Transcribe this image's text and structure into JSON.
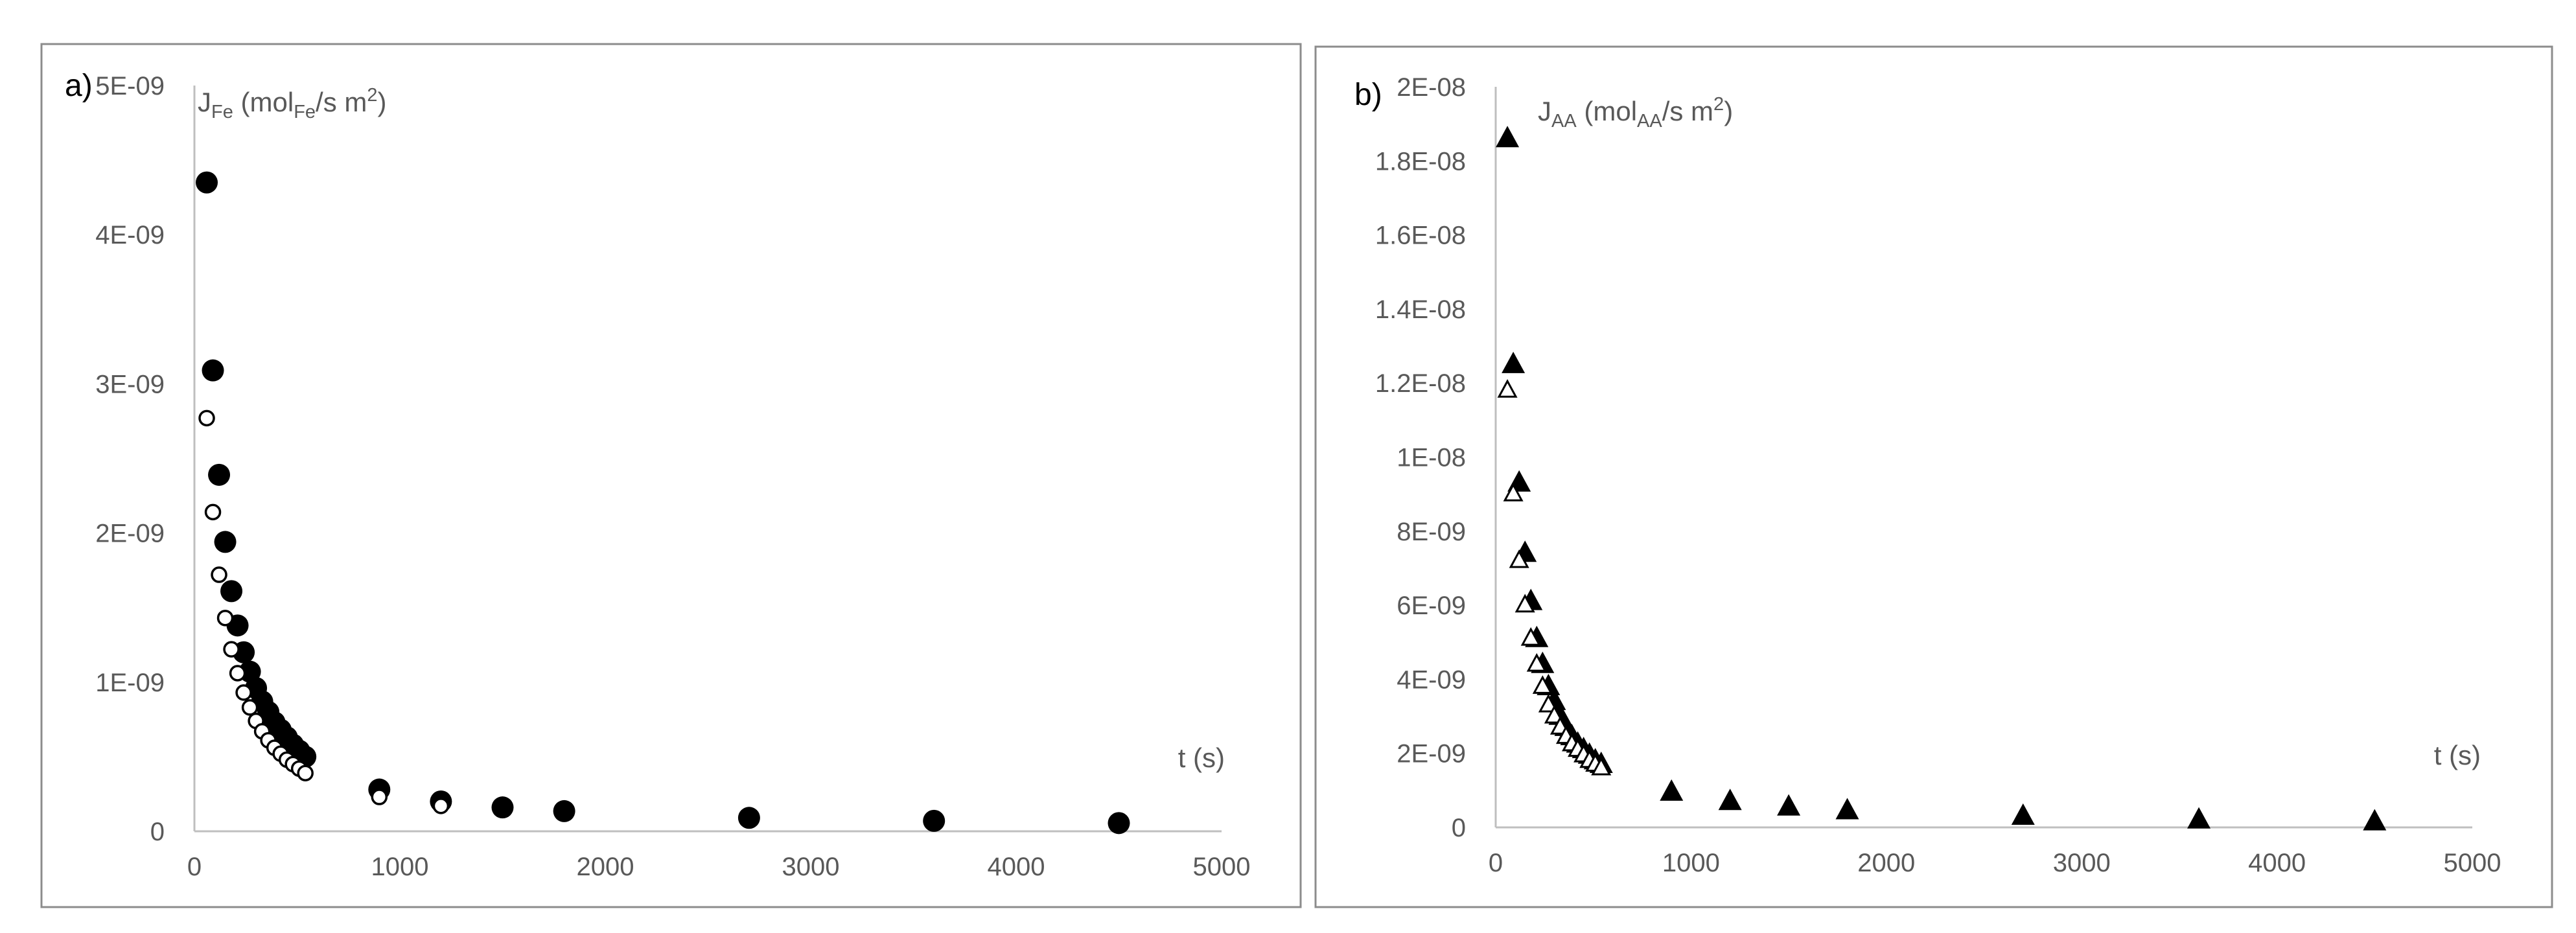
{
  "chart_data": [
    {
      "type": "scatter",
      "panel_label": "a)",
      "ylabel_main": "J",
      "ylabel_sub": "Fe",
      "ylabel_mid": " (mol",
      "ylabel_sub2": "Fe",
      "ylabel_unit": "/s m",
      "ylabel_sup": "2",
      "ylabel_close": ")",
      "xlabel": "t (s)",
      "xlim": [
        0,
        5000
      ],
      "ylim": [
        0,
        5e-09
      ],
      "xticks": [
        "0",
        "1000",
        "2000",
        "3000",
        "4000",
        "5000"
      ],
      "yticks": [
        "0",
        "1E-09",
        "2E-09",
        "3E-09",
        "4E-09",
        "5E-09"
      ],
      "grid": false,
      "series": [
        {
          "marker": "circle-filled",
          "x": [
            60,
            90,
            120,
            150,
            180,
            210,
            240,
            270,
            300,
            330,
            360,
            390,
            420,
            450,
            480,
            510,
            540,
            900,
            1200,
            1500,
            1800,
            2700,
            3600,
            4500
          ],
          "y": [
            4.35e-09,
            3.09e-09,
            2.39e-09,
            1.94e-09,
            1.61e-09,
            1.38e-09,
            1.2e-09,
            1.07e-09,
            9.6e-10,
            8.7e-10,
            8e-10,
            7.3e-10,
            6.8e-10,
            6.3e-10,
            5.8e-10,
            5.4e-10,
            5e-10,
            2.8e-10,
            2e-10,
            1.6e-10,
            1.35e-10,
            9e-11,
            7e-11,
            5.5e-11
          ]
        },
        {
          "marker": "circle-open",
          "x": [
            60,
            90,
            120,
            150,
            180,
            210,
            240,
            270,
            300,
            330,
            360,
            390,
            420,
            450,
            480,
            510,
            540,
            900,
            1200
          ],
          "y": [
            2.77e-09,
            2.14e-09,
            1.72e-09,
            1.43e-09,
            1.22e-09,
            1.06e-09,
            9.3e-10,
            8.3e-10,
            7.4e-10,
            6.7e-10,
            6.1e-10,
            5.6e-10,
            5.2e-10,
            4.8e-10,
            4.5e-10,
            4.2e-10,
            3.9e-10,
            2.3e-10,
            1.7e-10
          ]
        }
      ]
    },
    {
      "type": "scatter",
      "panel_label": "b)",
      "ylabel_main": "J",
      "ylabel_sub": "AA",
      "ylabel_mid": " (mol",
      "ylabel_sub2": "AA",
      "ylabel_unit": "/s m",
      "ylabel_sup": "2",
      "ylabel_close": ")",
      "xlabel": "t (s)",
      "xlim": [
        0,
        5000
      ],
      "ylim": [
        0,
        2e-08
      ],
      "xticks": [
        "0",
        "1000",
        "2000",
        "3000",
        "4000",
        "5000"
      ],
      "yticks": [
        "0",
        "2E-09",
        "4E-09",
        "6E-09",
        "8E-09",
        "1E-08",
        "1.2E-08",
        "1.4E-08",
        "1.6E-08",
        "1.8E-08",
        "2E-08"
      ],
      "grid": false,
      "series": [
        {
          "marker": "triangle-filled",
          "x": [
            60,
            90,
            120,
            150,
            180,
            210,
            240,
            270,
            300,
            330,
            360,
            390,
            420,
            450,
            480,
            510,
            540,
            900,
            1200,
            1500,
            1800,
            2700,
            3600,
            4500
          ],
          "y": [
            1.86e-08,
            1.25e-08,
            9.3e-09,
            7.4e-09,
            6.1e-09,
            5.1e-09,
            4.4e-09,
            3.8e-09,
            3.4e-09,
            3e-09,
            2.7e-09,
            2.45e-09,
            2.25e-09,
            2.1e-09,
            1.95e-09,
            1.8e-09,
            1.7e-09,
            9.5e-10,
            7e-10,
            5.5e-10,
            4.5e-10,
            3e-10,
            2e-10,
            1.5e-10
          ]
        },
        {
          "marker": "triangle-open",
          "x": [
            60,
            90,
            120,
            150,
            180,
            210,
            240,
            270,
            300,
            330,
            360,
            390,
            420,
            450,
            480,
            510,
            540
          ],
          "y": [
            1.18e-08,
            9e-09,
            7.2e-09,
            6e-09,
            5.1e-09,
            4.4e-09,
            3.8e-09,
            3.3e-09,
            3e-09,
            2.7e-09,
            2.45e-09,
            2.25e-09,
            2.1e-09,
            1.95e-09,
            1.8e-09,
            1.7e-09,
            1.6e-09
          ]
        }
      ]
    }
  ]
}
